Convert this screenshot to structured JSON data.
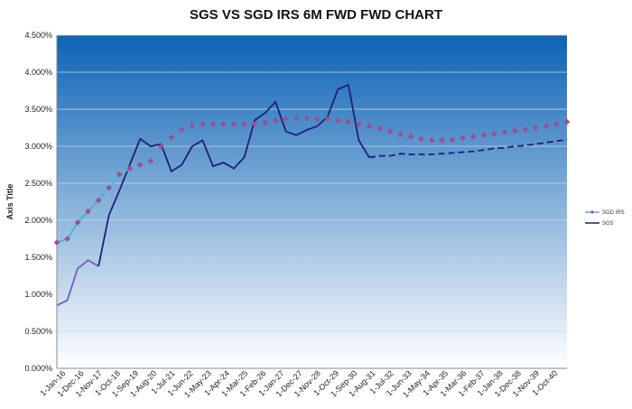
{
  "chart_data": {
    "type": "line",
    "title": "SGS VS SGD IRS 6M FWD FWD CHART",
    "ylabel": "Axis Title",
    "xlabel": "",
    "ylim": [
      0,
      4.5
    ],
    "y_ticks": [
      "0.000%",
      "0.500%",
      "1.000%",
      "1.500%",
      "2.000%",
      "2.500%",
      "3.000%",
      "3.500%",
      "4.000%",
      "4.500%"
    ],
    "x_tick_labels": [
      "1-Jan-16",
      "1-Dec-16",
      "1-Nov-17",
      "1-Oct-18",
      "1-Sep-19",
      "1-Aug-20",
      "1-Jul-21",
      "1-Jun-22",
      "1-May-23",
      "1-Apr-24",
      "1-Mar-25",
      "1-Feb-26",
      "1-Jan-27",
      "1-Dec-27",
      "1-Nov-28",
      "1-Oct-29",
      "1-Sep-30",
      "1-Aug-31",
      "1-Jul-32",
      "1-Jun-33",
      "1-May-34",
      "1-Apr-35",
      "1-Mar-36",
      "1-Feb-37",
      "1-Jan-38",
      "1-Dec-38",
      "1-Nov-39",
      "1-Oct-40"
    ],
    "x_range": [
      0,
      49
    ],
    "grid": true,
    "legend_position": "right",
    "background_gradient": [
      "#0d63b5",
      "#ffffff"
    ],
    "series": [
      {
        "name": "SGD IRS",
        "color": "#4fb3d9",
        "marker_color": "#9b4f8f",
        "x": [
          0,
          1,
          2,
          3,
          4,
          5,
          6,
          7,
          8,
          9,
          10,
          11,
          12,
          13,
          14,
          15,
          16,
          17,
          18,
          19,
          20,
          21,
          22,
          23,
          24,
          25,
          26,
          27,
          28,
          29,
          30,
          31,
          32,
          33,
          34,
          35,
          36,
          37,
          38,
          39,
          40,
          41,
          42,
          43,
          44,
          45,
          46,
          47,
          48,
          49
        ],
        "values": [
          1.7,
          1.75,
          1.97,
          2.12,
          2.27,
          2.44,
          2.62,
          2.7,
          2.75,
          2.8,
          3.0,
          3.12,
          3.23,
          3.28,
          3.3,
          3.3,
          3.3,
          3.3,
          3.3,
          3.3,
          3.32,
          3.35,
          3.37,
          3.38,
          3.38,
          3.37,
          3.37,
          3.35,
          3.33,
          3.3,
          3.27,
          3.24,
          3.2,
          3.16,
          3.13,
          3.1,
          3.08,
          3.08,
          3.09,
          3.11,
          3.13,
          3.15,
          3.17,
          3.19,
          3.21,
          3.23,
          3.25,
          3.27,
          3.3,
          3.33
        ]
      },
      {
        "name": "SGS",
        "color": "#1f1f7a",
        "x": [
          0,
          1,
          2,
          3,
          4,
          5,
          6,
          7,
          8,
          9,
          10,
          11,
          12,
          13,
          14,
          15,
          16,
          17,
          18,
          19,
          20,
          21,
          22,
          23,
          24,
          25,
          26,
          27,
          28,
          29,
          30,
          31,
          32,
          33,
          34,
          35,
          36,
          37,
          38,
          39,
          40,
          41,
          42,
          43,
          44,
          45,
          46,
          47,
          48,
          49
        ],
        "values": [
          0.85,
          0.92,
          1.35,
          1.46,
          1.38,
          2.07,
          2.4,
          2.75,
          3.1,
          3.0,
          3.03,
          2.66,
          2.75,
          3.0,
          3.08,
          2.73,
          2.78,
          2.7,
          2.85,
          3.35,
          3.45,
          3.6,
          3.2,
          3.15,
          3.22,
          3.27,
          3.4,
          3.77,
          3.83,
          3.08,
          2.85,
          2.87,
          2.87,
          2.9,
          2.89,
          2.89,
          2.89,
          2.9,
          2.91,
          2.92,
          2.93,
          2.95,
          2.97,
          2.98,
          3.0,
          3.01,
          3.03,
          3.05,
          3.07,
          3.09
        ]
      }
    ]
  }
}
